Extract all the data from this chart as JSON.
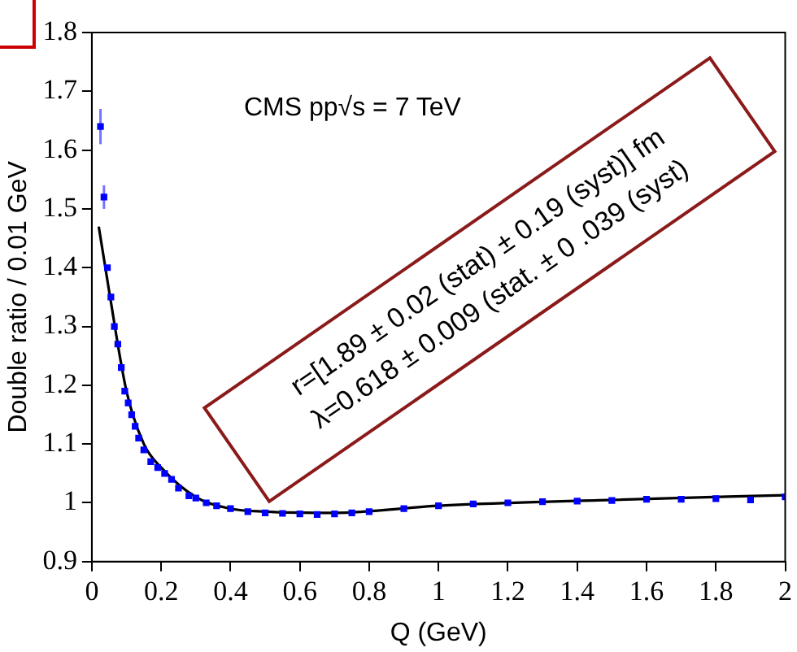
{
  "chart_data": {
    "type": "scatter",
    "xlabel": "Q (GeV)",
    "ylabel": "Double ratio / 0.01 GeV",
    "annotations": [
      "CMS pp√s = 7 TeV",
      "r=[1.89 ± 0.02 (stat) ± 0.19 (syst)] fm",
      "λ=0.618 ± 0.009 (stat. ± 0 .039 (syst)"
    ],
    "xlim": [
      0,
      2
    ],
    "xticks": [
      0,
      0.2,
      0.4,
      0.6,
      0.8,
      1,
      1.2,
      1.4,
      1.6,
      1.8,
      2
    ],
    "ylim": [
      0.9,
      1.8
    ],
    "yticks": [
      0.9,
      1,
      1.1,
      1.2,
      1.3,
      1.4,
      1.5,
      1.6,
      1.7,
      1.8
    ],
    "grid": false,
    "legend": false,
    "series": [
      {
        "color": "#0000ff",
        "marker": "square",
        "x": [
          0.025,
          0.035,
          0.045,
          0.055,
          0.065,
          0.075,
          0.085,
          0.095,
          0.105,
          0.115,
          0.125,
          0.135,
          0.15,
          0.17,
          0.19,
          0.21,
          0.23,
          0.25,
          0.28,
          0.3,
          0.33,
          0.36,
          0.4,
          0.45,
          0.5,
          0.55,
          0.6,
          0.65,
          0.7,
          0.75,
          0.8,
          0.9,
          1.0,
          1.1,
          1.2,
          1.3,
          1.4,
          1.5,
          1.6,
          1.7,
          1.8,
          1.9,
          2.0
        ],
        "values": [
          1.64,
          1.52,
          1.4,
          1.35,
          1.3,
          1.27,
          1.23,
          1.19,
          1.17,
          1.15,
          1.13,
          1.11,
          1.09,
          1.07,
          1.06,
          1.05,
          1.04,
          1.025,
          1.012,
          1.008,
          1.0,
          0.995,
          0.99,
          0.985,
          0.983,
          0.982,
          0.981,
          0.98,
          0.981,
          0.983,
          0.985,
          0.99,
          0.995,
          0.998,
          1.0,
          1.002,
          1.003,
          1.004,
          1.006,
          1.006,
          1.007,
          1.005,
          1.01
        ],
        "errors": [
          0.03,
          0.02,
          null,
          null,
          null,
          null,
          null,
          null,
          null,
          null,
          null,
          null,
          null,
          null,
          null,
          null,
          null,
          null,
          null,
          null,
          null,
          null,
          null,
          null,
          null,
          null,
          null,
          null,
          null,
          null,
          null,
          null,
          null,
          null,
          null,
          null,
          null,
          null,
          null,
          null,
          null,
          null,
          null
        ]
      },
      {
        "type": "line",
        "color": "#000000",
        "marker": "none",
        "line_style": "solid",
        "x": [
          0.02,
          0.05,
          0.1,
          0.15,
          0.2,
          0.3,
          0.4,
          0.5,
          0.7,
          1.0,
          1.5,
          2.0
        ],
        "values": [
          1.47,
          1.36,
          1.19,
          1.1,
          1.06,
          1.01,
          0.99,
          0.985,
          0.983,
          0.995,
          1.005,
          1.013
        ]
      }
    ]
  }
}
